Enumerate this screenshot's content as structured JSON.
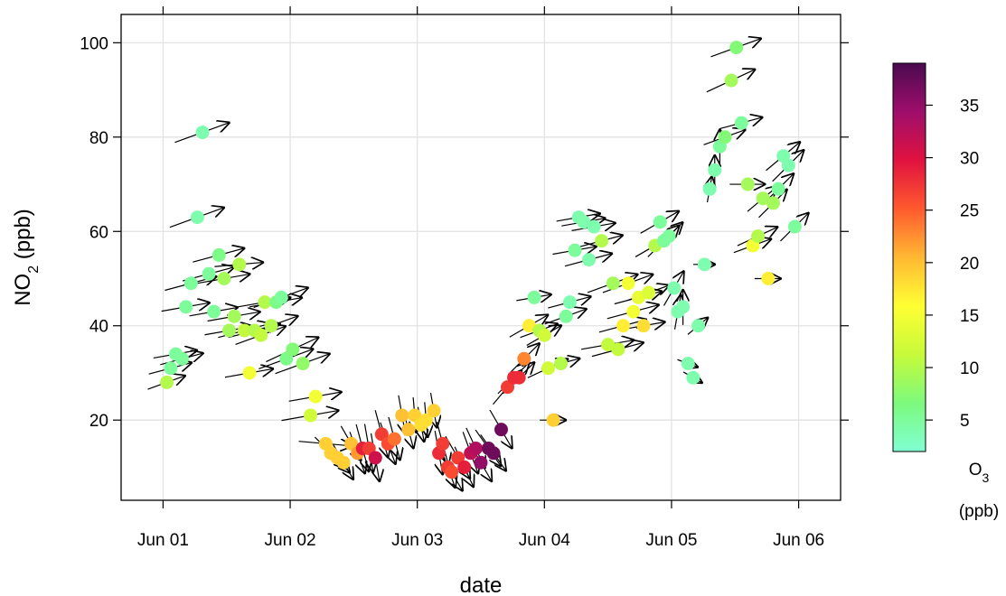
{
  "chart_data": {
    "type": "scatter",
    "xlabel": "date",
    "ylabel_main": "NO",
    "ylabel_sub": "2",
    "ylabel_unit": " (ppb)",
    "x_ticks": [
      "Jun 01",
      "Jun 02",
      "Jun 03",
      "Jun 04",
      "Jun 05",
      "Jun 06"
    ],
    "xlim": [
      -0.33,
      5.33
    ],
    "y_ticks": [
      20,
      40,
      60,
      80,
      100
    ],
    "ylim": [
      3,
      106
    ],
    "grid": true,
    "colorbar": {
      "title_main": "O",
      "title_sub": "3",
      "title_unit": "(ppb)",
      "ticks": [
        5,
        10,
        15,
        20,
        25,
        30,
        35
      ],
      "range": [
        2,
        39
      ],
      "colors": [
        "#80FFD4",
        "#7CFA7C",
        "#C7FA3A",
        "#FFFF33",
        "#FFB833",
        "#FF5A2E",
        "#E0123F",
        "#9E0E6B",
        "#4A0A4F"
      ]
    },
    "points_note": "x in days since Jun 01, y = NO2 (ppb), c = O3 (ppb), a = wind direction (deg, math angle), l = arrow length",
    "points": [
      {
        "x": 0.03,
        "y": 28,
        "c": 10,
        "a": 20,
        "l": 0.9
      },
      {
        "x": 0.06,
        "y": 31,
        "c": 5,
        "a": 15,
        "l": 1
      },
      {
        "x": 0.1,
        "y": 34,
        "c": 5,
        "a": 10,
        "l": 1
      },
      {
        "x": 0.15,
        "y": 33,
        "c": 5,
        "a": 15,
        "l": 1
      },
      {
        "x": 0.18,
        "y": 44,
        "c": 5,
        "a": 10,
        "l": 1.1
      },
      {
        "x": 0.22,
        "y": 49,
        "c": 5,
        "a": 15,
        "l": 1.2
      },
      {
        "x": 0.27,
        "y": 63,
        "c": 4,
        "a": 20,
        "l": 1.3
      },
      {
        "x": 0.31,
        "y": 81,
        "c": 4,
        "a": 20,
        "l": 1.3
      },
      {
        "x": 0.36,
        "y": 51,
        "c": 5,
        "a": 15,
        "l": 1.2
      },
      {
        "x": 0.4,
        "y": 43,
        "c": 5,
        "a": 10,
        "l": 1.1
      },
      {
        "x": 0.44,
        "y": 55,
        "c": 6,
        "a": 15,
        "l": 1.2
      },
      {
        "x": 0.48,
        "y": 50,
        "c": 9,
        "a": 10,
        "l": 1.2
      },
      {
        "x": 0.52,
        "y": 39,
        "c": 9,
        "a": 10,
        "l": 1.1
      },
      {
        "x": 0.56,
        "y": 42,
        "c": 9,
        "a": 10,
        "l": 1.2
      },
      {
        "x": 0.6,
        "y": 53,
        "c": 10,
        "a": 5,
        "l": 1.1
      },
      {
        "x": 0.64,
        "y": 39,
        "c": 11,
        "a": 15,
        "l": 1.2
      },
      {
        "x": 0.68,
        "y": 30,
        "c": 15,
        "a": 10,
        "l": 1.1
      },
      {
        "x": 0.72,
        "y": 39,
        "c": 10,
        "a": 15,
        "l": 1.2
      },
      {
        "x": 0.77,
        "y": 38,
        "c": 11,
        "a": 20,
        "l": 1.2
      },
      {
        "x": 0.8,
        "y": 45,
        "c": 10,
        "a": 10,
        "l": 1.2
      },
      {
        "x": 0.85,
        "y": 40,
        "c": 10,
        "a": 20,
        "l": 1.3
      },
      {
        "x": 0.89,
        "y": 45,
        "c": 6,
        "a": 10,
        "l": 1.2
      },
      {
        "x": 0.93,
        "y": 46,
        "c": 5,
        "a": 20,
        "l": 1.3
      },
      {
        "x": 0.97,
        "y": 33,
        "c": 6,
        "a": 20,
        "l": 1.3
      },
      {
        "x": 1.02,
        "y": 35,
        "c": 7,
        "a": 25,
        "l": 1.3
      },
      {
        "x": 1.1,
        "y": 32,
        "c": 8,
        "a": 20,
        "l": 1.3
      },
      {
        "x": 1.16,
        "y": 21,
        "c": 12,
        "a": 10,
        "l": 1.3
      },
      {
        "x": 1.2,
        "y": 25,
        "c": 15,
        "a": 10,
        "l": 1.2
      },
      {
        "x": 1.28,
        "y": 15,
        "c": 19,
        "a": -5,
        "l": 1.2
      },
      {
        "x": 1.32,
        "y": 13,
        "c": 19,
        "a": -45,
        "l": 1
      },
      {
        "x": 1.37,
        "y": 12,
        "c": 19,
        "a": -50,
        "l": 0.9
      },
      {
        "x": 1.42,
        "y": 11,
        "c": 19,
        "a": -60,
        "l": 0.9
      },
      {
        "x": 1.48,
        "y": 15,
        "c": 20,
        "a": -60,
        "l": 0.9
      },
      {
        "x": 1.53,
        "y": 13,
        "c": 22,
        "a": -70,
        "l": 1
      },
      {
        "x": 1.57,
        "y": 14,
        "c": 29,
        "a": -75,
        "l": 1.1
      },
      {
        "x": 1.62,
        "y": 14,
        "c": 27,
        "a": -80,
        "l": 1.1
      },
      {
        "x": 1.67,
        "y": 12,
        "c": 31,
        "a": -80,
        "l": 1.1
      },
      {
        "x": 1.72,
        "y": 17,
        "c": 27,
        "a": -75,
        "l": 1.1
      },
      {
        "x": 1.77,
        "y": 15,
        "c": 26,
        "a": -70,
        "l": 1
      },
      {
        "x": 1.82,
        "y": 16,
        "c": 24,
        "a": -75,
        "l": 1
      },
      {
        "x": 1.88,
        "y": 21,
        "c": 20,
        "a": -80,
        "l": 0.9
      },
      {
        "x": 1.93,
        "y": 18,
        "c": 20,
        "a": -75,
        "l": 0.9
      },
      {
        "x": 1.98,
        "y": 21,
        "c": 19,
        "a": -85,
        "l": 0.8
      },
      {
        "x": 2.03,
        "y": 19,
        "c": 18,
        "a": -80,
        "l": 0.8
      },
      {
        "x": 2.07,
        "y": 20,
        "c": 18,
        "a": -85,
        "l": 0.8
      },
      {
        "x": 2.13,
        "y": 22,
        "c": 19,
        "a": -80,
        "l": 0.8
      },
      {
        "x": 2.17,
        "y": 13,
        "c": 28,
        "a": -80,
        "l": 1
      },
      {
        "x": 2.2,
        "y": 15,
        "c": 27,
        "a": -75,
        "l": 1
      },
      {
        "x": 2.24,
        "y": 10,
        "c": 27,
        "a": -70,
        "l": 1
      },
      {
        "x": 2.27,
        "y": 9,
        "c": 26,
        "a": -60,
        "l": 1
      },
      {
        "x": 2.32,
        "y": 12,
        "c": 27,
        "a": -60,
        "l": 1.1
      },
      {
        "x": 2.37,
        "y": 10,
        "c": 29,
        "a": -65,
        "l": 1
      },
      {
        "x": 2.42,
        "y": 13,
        "c": 32,
        "a": -70,
        "l": 1
      },
      {
        "x": 2.46,
        "y": 14,
        "c": 33,
        "a": -65,
        "l": 1
      },
      {
        "x": 2.5,
        "y": 11,
        "c": 35,
        "a": -60,
        "l": 1
      },
      {
        "x": 2.56,
        "y": 14,
        "c": 37,
        "a": -55,
        "l": 1
      },
      {
        "x": 2.6,
        "y": 13,
        "c": 37,
        "a": -55,
        "l": 1
      },
      {
        "x": 2.66,
        "y": 18,
        "c": 37,
        "a": -60,
        "l": 1
      },
      {
        "x": 2.71,
        "y": 27,
        "c": 27,
        "a": 50,
        "l": 1
      },
      {
        "x": 2.76,
        "y": 29,
        "c": 28,
        "a": 45,
        "l": 1
      },
      {
        "x": 2.8,
        "y": 29,
        "c": 28,
        "a": 45,
        "l": 1
      },
      {
        "x": 2.84,
        "y": 33,
        "c": 23,
        "a": 45,
        "l": 1
      },
      {
        "x": 2.88,
        "y": 40,
        "c": 17,
        "a": 30,
        "l": 1
      },
      {
        "x": 2.92,
        "y": 46,
        "c": 5,
        "a": 10,
        "l": 0.8
      },
      {
        "x": 2.96,
        "y": 39,
        "c": 10,
        "a": 20,
        "l": 0.9
      },
      {
        "x": 3.0,
        "y": 38,
        "c": 12,
        "a": 30,
        "l": 0.9
      },
      {
        "x": 3.03,
        "y": 31,
        "c": 12,
        "a": 25,
        "l": 1
      },
      {
        "x": 3.07,
        "y": 20,
        "c": 19,
        "a": 0,
        "l": 0.6
      },
      {
        "x": 3.13,
        "y": 32,
        "c": 10,
        "a": 15,
        "l": 0.9
      },
      {
        "x": 3.17,
        "y": 42,
        "c": 5,
        "a": 20,
        "l": 1
      },
      {
        "x": 3.2,
        "y": 45,
        "c": 4,
        "a": 15,
        "l": 1
      },
      {
        "x": 3.24,
        "y": 56,
        "c": 5,
        "a": 10,
        "l": 1
      },
      {
        "x": 3.27,
        "y": 63,
        "c": 4,
        "a": 10,
        "l": 1
      },
      {
        "x": 3.31,
        "y": 62,
        "c": 4,
        "a": 10,
        "l": 1
      },
      {
        "x": 3.35,
        "y": 54,
        "c": 4,
        "a": 15,
        "l": 1.1
      },
      {
        "x": 3.39,
        "y": 61,
        "c": 4,
        "a": 10,
        "l": 1
      },
      {
        "x": 3.45,
        "y": 58,
        "c": 10,
        "a": 15,
        "l": 1
      },
      {
        "x": 3.5,
        "y": 36,
        "c": 11,
        "a": 10,
        "l": 1.2
      },
      {
        "x": 3.54,
        "y": 49,
        "c": 9,
        "a": 20,
        "l": 1.2
      },
      {
        "x": 3.58,
        "y": 35,
        "c": 11,
        "a": 15,
        "l": 1.2
      },
      {
        "x": 3.62,
        "y": 40,
        "c": 17,
        "a": 15,
        "l": 1.1
      },
      {
        "x": 3.66,
        "y": 49,
        "c": 15,
        "a": 20,
        "l": 1.2
      },
      {
        "x": 3.7,
        "y": 43,
        "c": 15,
        "a": 15,
        "l": 1.2
      },
      {
        "x": 3.74,
        "y": 46,
        "c": 14,
        "a": 15,
        "l": 1.1
      },
      {
        "x": 3.78,
        "y": 40,
        "c": 18,
        "a": 10,
        "l": 1
      },
      {
        "x": 3.82,
        "y": 47,
        "c": 13,
        "a": 20,
        "l": 1
      },
      {
        "x": 3.87,
        "y": 57,
        "c": 10,
        "a": 30,
        "l": 1
      },
      {
        "x": 3.91,
        "y": 62,
        "c": 5,
        "a": 30,
        "l": 1
      },
      {
        "x": 3.94,
        "y": 58,
        "c": 5,
        "a": 45,
        "l": 1
      },
      {
        "x": 3.98,
        "y": 59,
        "c": 5,
        "a": 45,
        "l": 0.9
      },
      {
        "x": 4.02,
        "y": 48,
        "c": 4,
        "a": 60,
        "l": 0.9
      },
      {
        "x": 4.05,
        "y": 43,
        "c": 4,
        "a": 80,
        "l": 0.8
      },
      {
        "x": 4.09,
        "y": 44,
        "c": 4,
        "a": 90,
        "l": 0.8
      },
      {
        "x": 4.13,
        "y": 32,
        "c": 4,
        "a": -20,
        "l": 0.5
      },
      {
        "x": 4.17,
        "y": 29,
        "c": 4,
        "a": -30,
        "l": 0.5
      },
      {
        "x": 4.21,
        "y": 40,
        "c": 4,
        "a": 40,
        "l": 0.6
      },
      {
        "x": 4.26,
        "y": 53,
        "c": 4,
        "a": 0,
        "l": 0.5
      },
      {
        "x": 4.3,
        "y": 69,
        "c": 4,
        "a": 80,
        "l": 0.6
      },
      {
        "x": 4.34,
        "y": 73,
        "c": 4,
        "a": 90,
        "l": 0.7
      },
      {
        "x": 4.38,
        "y": 78,
        "c": 5,
        "a": 90,
        "l": 0.8
      },
      {
        "x": 4.42,
        "y": 80,
        "c": 7,
        "a": 20,
        "l": 1
      },
      {
        "x": 4.47,
        "y": 92,
        "c": 9,
        "a": 25,
        "l": 1.2
      },
      {
        "x": 4.51,
        "y": 99,
        "c": 7,
        "a": 20,
        "l": 1.2
      },
      {
        "x": 4.55,
        "y": 83,
        "c": 5,
        "a": 15,
        "l": 1
      },
      {
        "x": 4.6,
        "y": 70,
        "c": 9,
        "a": 0,
        "l": 0.8
      },
      {
        "x": 4.64,
        "y": 57,
        "c": 15,
        "a": 20,
        "l": 0.9
      },
      {
        "x": 4.68,
        "y": 59,
        "c": 10,
        "a": 25,
        "l": 1
      },
      {
        "x": 4.72,
        "y": 67,
        "c": 9,
        "a": 40,
        "l": 0.9
      },
      {
        "x": 4.76,
        "y": 50,
        "c": 17,
        "a": 0,
        "l": 0.6
      },
      {
        "x": 4.8,
        "y": 66,
        "c": 9,
        "a": 45,
        "l": 0.9
      },
      {
        "x": 4.84,
        "y": 69,
        "c": 5,
        "a": 45,
        "l": 1
      },
      {
        "x": 4.88,
        "y": 76,
        "c": 4,
        "a": 40,
        "l": 1
      },
      {
        "x": 4.92,
        "y": 74,
        "c": 4,
        "a": 45,
        "l": 1
      },
      {
        "x": 4.97,
        "y": 61,
        "c": 5,
        "a": 45,
        "l": 0.9
      }
    ]
  }
}
